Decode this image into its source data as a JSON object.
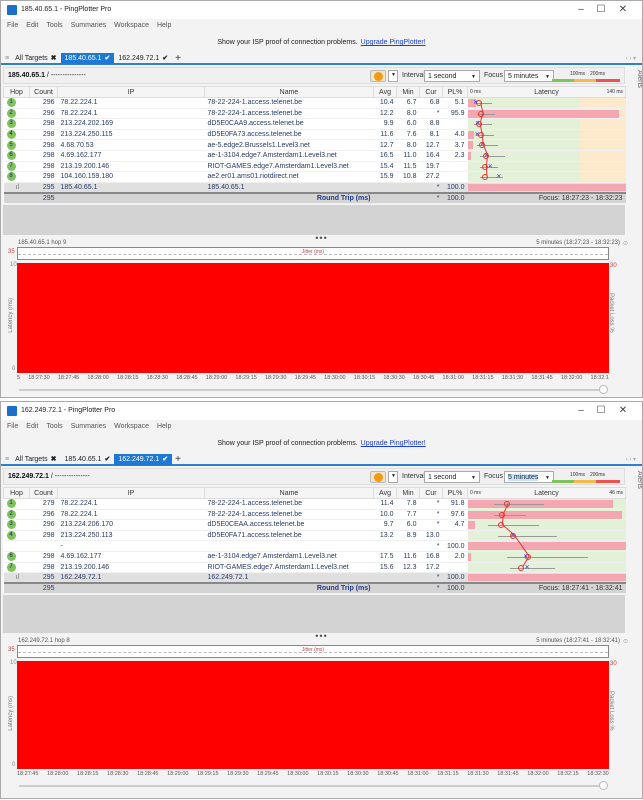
{
  "app_name": "PingPlotter Pro",
  "colors": {
    "accent": "#1e78d6",
    "packet_loss": "#ff0000",
    "hop_ok": "#7cc35a",
    "scale_good": "#7cc35a",
    "scale_warn": "#f5b94a",
    "scale_bad": "#ef5350"
  },
  "windows": [
    {
      "title": "185.40.65.1 - PingPlotter Pro",
      "menu": [
        "File",
        "Edit",
        "Tools",
        "Summaries",
        "Workspace",
        "Help"
      ],
      "banner": {
        "text": "Show your ISP proof of connection problems.",
        "link": "Upgrade PingPlotter!"
      },
      "tabs": [
        {
          "label": "All Targets",
          "icon": "close-icon",
          "active": false
        },
        {
          "label": "185.40.65.1",
          "icon": "check-icon",
          "active": true
        },
        {
          "label": "162.249.72.1",
          "icon": "check-icon",
          "active": false
        }
      ],
      "toolbar": {
        "target": "185.40.65.1",
        "path": " / ---------------",
        "interval_label": "Interval",
        "interval": "1 second",
        "focus_label": "Focus",
        "focus": "5 minutes",
        "scale_100": "100ms",
        "scale_200": "200ms",
        "alerts": "Alerts"
      },
      "columns": [
        "Hop",
        "Count",
        "IP",
        "Name",
        "Avg",
        "Min",
        "Cur",
        "PL%",
        "Latency"
      ],
      "latency_scale": {
        "min": "0 ms",
        "max": "140 ms",
        "max_value": 140
      },
      "rows": [
        {
          "hop": "1",
          "count": "296",
          "ip": "78.22.224.1",
          "name": "78-22-224-1.access.telenet.be",
          "avg": "10.4",
          "min": "6.7",
          "cur": "6.8",
          "pl": "5.1"
        },
        {
          "hop": "2",
          "count": "296",
          "ip": "78.22.224.1",
          "name": "78-22-224-1.access.telenet.be",
          "avg": "12.2",
          "min": "8.0",
          "cur": "*",
          "pl": "95.9"
        },
        {
          "hop": "3",
          "count": "298",
          "ip": "213.224.202.169",
          "name": "dD5E0CAA9.access.telenet.be",
          "avg": "9.9",
          "min": "6.0",
          "cur": "8.8",
          "pl": ""
        },
        {
          "hop": "4",
          "count": "298",
          "ip": "213.224.250.115",
          "name": "dD5E0FA73.access.telenet.be",
          "avg": "11.6",
          "min": "7.6",
          "cur": "8.1",
          "pl": "4.0"
        },
        {
          "hop": "5",
          "count": "298",
          "ip": "4.68.70.53",
          "name": "ae-5.edge2.Brussels1.Level3.net",
          "avg": "12.7",
          "min": "8.0",
          "cur": "12.7",
          "pl": "3.7"
        },
        {
          "hop": "6",
          "count": "298",
          "ip": "4.69.162.177",
          "name": "ae-1-3104.edge7.Amsterdam1.Level3.net",
          "avg": "16.5",
          "min": "11.0",
          "cur": "16.4",
          "pl": "2.3"
        },
        {
          "hop": "7",
          "count": "298",
          "ip": "213.19.200.146",
          "name": "RIOT-GAMES.edge7.Amsterdam1.Level3.net",
          "avg": "15.4",
          "min": "11.5",
          "cur": "19.7",
          "pl": ""
        },
        {
          "hop": "8",
          "count": "298",
          "ip": "104.160.159.180",
          "name": "ae2.er01.ams01.riotdirect.net",
          "avg": "15.9",
          "min": "10.8",
          "cur": "27.2",
          "pl": ""
        }
      ],
      "target_row": {
        "count": "295",
        "ip": "185.40.65.1",
        "name": "185.40.65.1",
        "cur": "*",
        "pl": "100.0"
      },
      "round_trip": {
        "count": "295",
        "label": "Round Trip (ms)",
        "cur": "*",
        "pl": "100.0",
        "focus": "Focus: 18:27:23 - 18:32:23"
      },
      "graph": {
        "title": "185.40.65.1 hop 9",
        "range": "5 minutes (18:27:23 - 18:32:23)",
        "jitter_label": "Jitter (ms)",
        "jitter_max": "35",
        "y_max": "10",
        "y_min": "0",
        "pl_max": "30",
        "y_label": "Latency (ms)",
        "pl_label": "Packet Loss %",
        "packet_loss_percent": 100,
        "times": [
          "5",
          "18:27:30",
          "18:27:45",
          "18:28:00",
          "18:28:15",
          "18:28:30",
          "18:28:45",
          "18:29:00",
          "18:29:15",
          "18:29:30",
          "18:29:45",
          "18:30:00",
          "18:30:15",
          "18:30:30",
          "18:30:45",
          "18:31:00",
          "18:31:15",
          "18:31:30",
          "18:31:45",
          "18:32:00",
          "18:32:1"
        ]
      }
    },
    {
      "title": "162.249.72.1 - PingPlotter Pro",
      "menu": [
        "File",
        "Edit",
        "Tools",
        "Summaries",
        "Workspace",
        "Help"
      ],
      "banner": {
        "text": "Show your ISP proof of connection problems.",
        "link": "Upgrade PingPlotter!"
      },
      "tabs": [
        {
          "label": "All Targets",
          "icon": "close-icon",
          "active": false
        },
        {
          "label": "185.40.65.1",
          "icon": "check-icon",
          "active": false
        },
        {
          "label": "162.249.72.1",
          "icon": "check-icon",
          "active": true
        }
      ],
      "toolbar": {
        "target": "162.249.72.1",
        "path": " / ---------------",
        "interval_label": "Interval",
        "interval": "1 second",
        "focus_label": "Focus",
        "focus": "5 minutes",
        "scale_100": "100ms",
        "scale_200": "200ms",
        "alerts": "Alerts"
      },
      "columns": [
        "Hop",
        "Count",
        "IP",
        "Name",
        "Avg",
        "Min",
        "Cur",
        "PL%",
        "Latency"
      ],
      "latency_scale": {
        "min": "0 ms",
        "max": "46 ms",
        "max_value": 46
      },
      "rows": [
        {
          "hop": "1",
          "count": "279",
          "ip": "78.22.224.1",
          "name": "78-22-224-1.access.telenet.be",
          "avg": "11.4",
          "min": "7.8",
          "cur": "*",
          "pl": "91.8"
        },
        {
          "hop": "2",
          "count": "296",
          "ip": "78.22.224.1",
          "name": "78-22-224-1.access.telenet.be",
          "avg": "10.0",
          "min": "7.7",
          "cur": "*",
          "pl": "97.6"
        },
        {
          "hop": "3",
          "count": "296",
          "ip": "213.224.206.170",
          "name": "dD5E0CEAA.access.telenet.be",
          "avg": "9.7",
          "min": "6.0",
          "cur": "*",
          "pl": "4.7"
        },
        {
          "hop": "4",
          "count": "298",
          "ip": "213.224.250.113",
          "name": "dD5E0FA71.access.telenet.be",
          "avg": "13.2",
          "min": "8.9",
          "cur": "13.0",
          "pl": ""
        },
        {
          "hop": "",
          "count": "",
          "ip": "-",
          "name": "",
          "avg": "",
          "min": "",
          "cur": "*",
          "pl": "100.0"
        },
        {
          "hop": "6",
          "count": "298",
          "ip": "4.69.162.177",
          "name": "ae-1-3104.edge7.Amsterdam1.Level3.net",
          "avg": "17.5",
          "min": "11.6",
          "cur": "16.8",
          "pl": "2.0"
        },
        {
          "hop": "7",
          "count": "298",
          "ip": "213.19.200.146",
          "name": "RIOT-GAMES.edge7.Amsterdam1.Level3.net",
          "avg": "15.6",
          "min": "12.3",
          "cur": "17.2",
          "pl": ""
        }
      ],
      "target_row": {
        "count": "295",
        "ip": "162.249.72.1",
        "name": "162.249.72.1",
        "cur": "*",
        "pl": "100.0"
      },
      "round_trip": {
        "count": "295",
        "label": "Round Trip (ms)",
        "cur": "*",
        "pl": "100.0",
        "focus": "Focus: 18:27:41 - 18:32:41"
      },
      "graph": {
        "title": "162.249.72.1 hop 8",
        "range": "5 minutes (18:27:41 - 18:32:41)",
        "jitter_label": "Jitter (ms)",
        "jitter_max": "35",
        "y_max": "10",
        "y_min": "0",
        "pl_max": "30",
        "y_label": "Latency (ms)",
        "pl_label": "Packet Loss %",
        "packet_loss_percent": 100,
        "times": [
          "18:27:45",
          "18:28:00",
          "18:28:15",
          "18:28:30",
          "18:28:45",
          "18:29:00",
          "18:29:15",
          "18:29:30",
          "18:29:45",
          "18:30:00",
          "18:30:15",
          "18:30:30",
          "18:30:45",
          "18:31:00",
          "18:31:15",
          "18:31:30",
          "18:31:45",
          "18:32:00",
          "18:32:15",
          "18:32:30"
        ]
      }
    }
  ]
}
